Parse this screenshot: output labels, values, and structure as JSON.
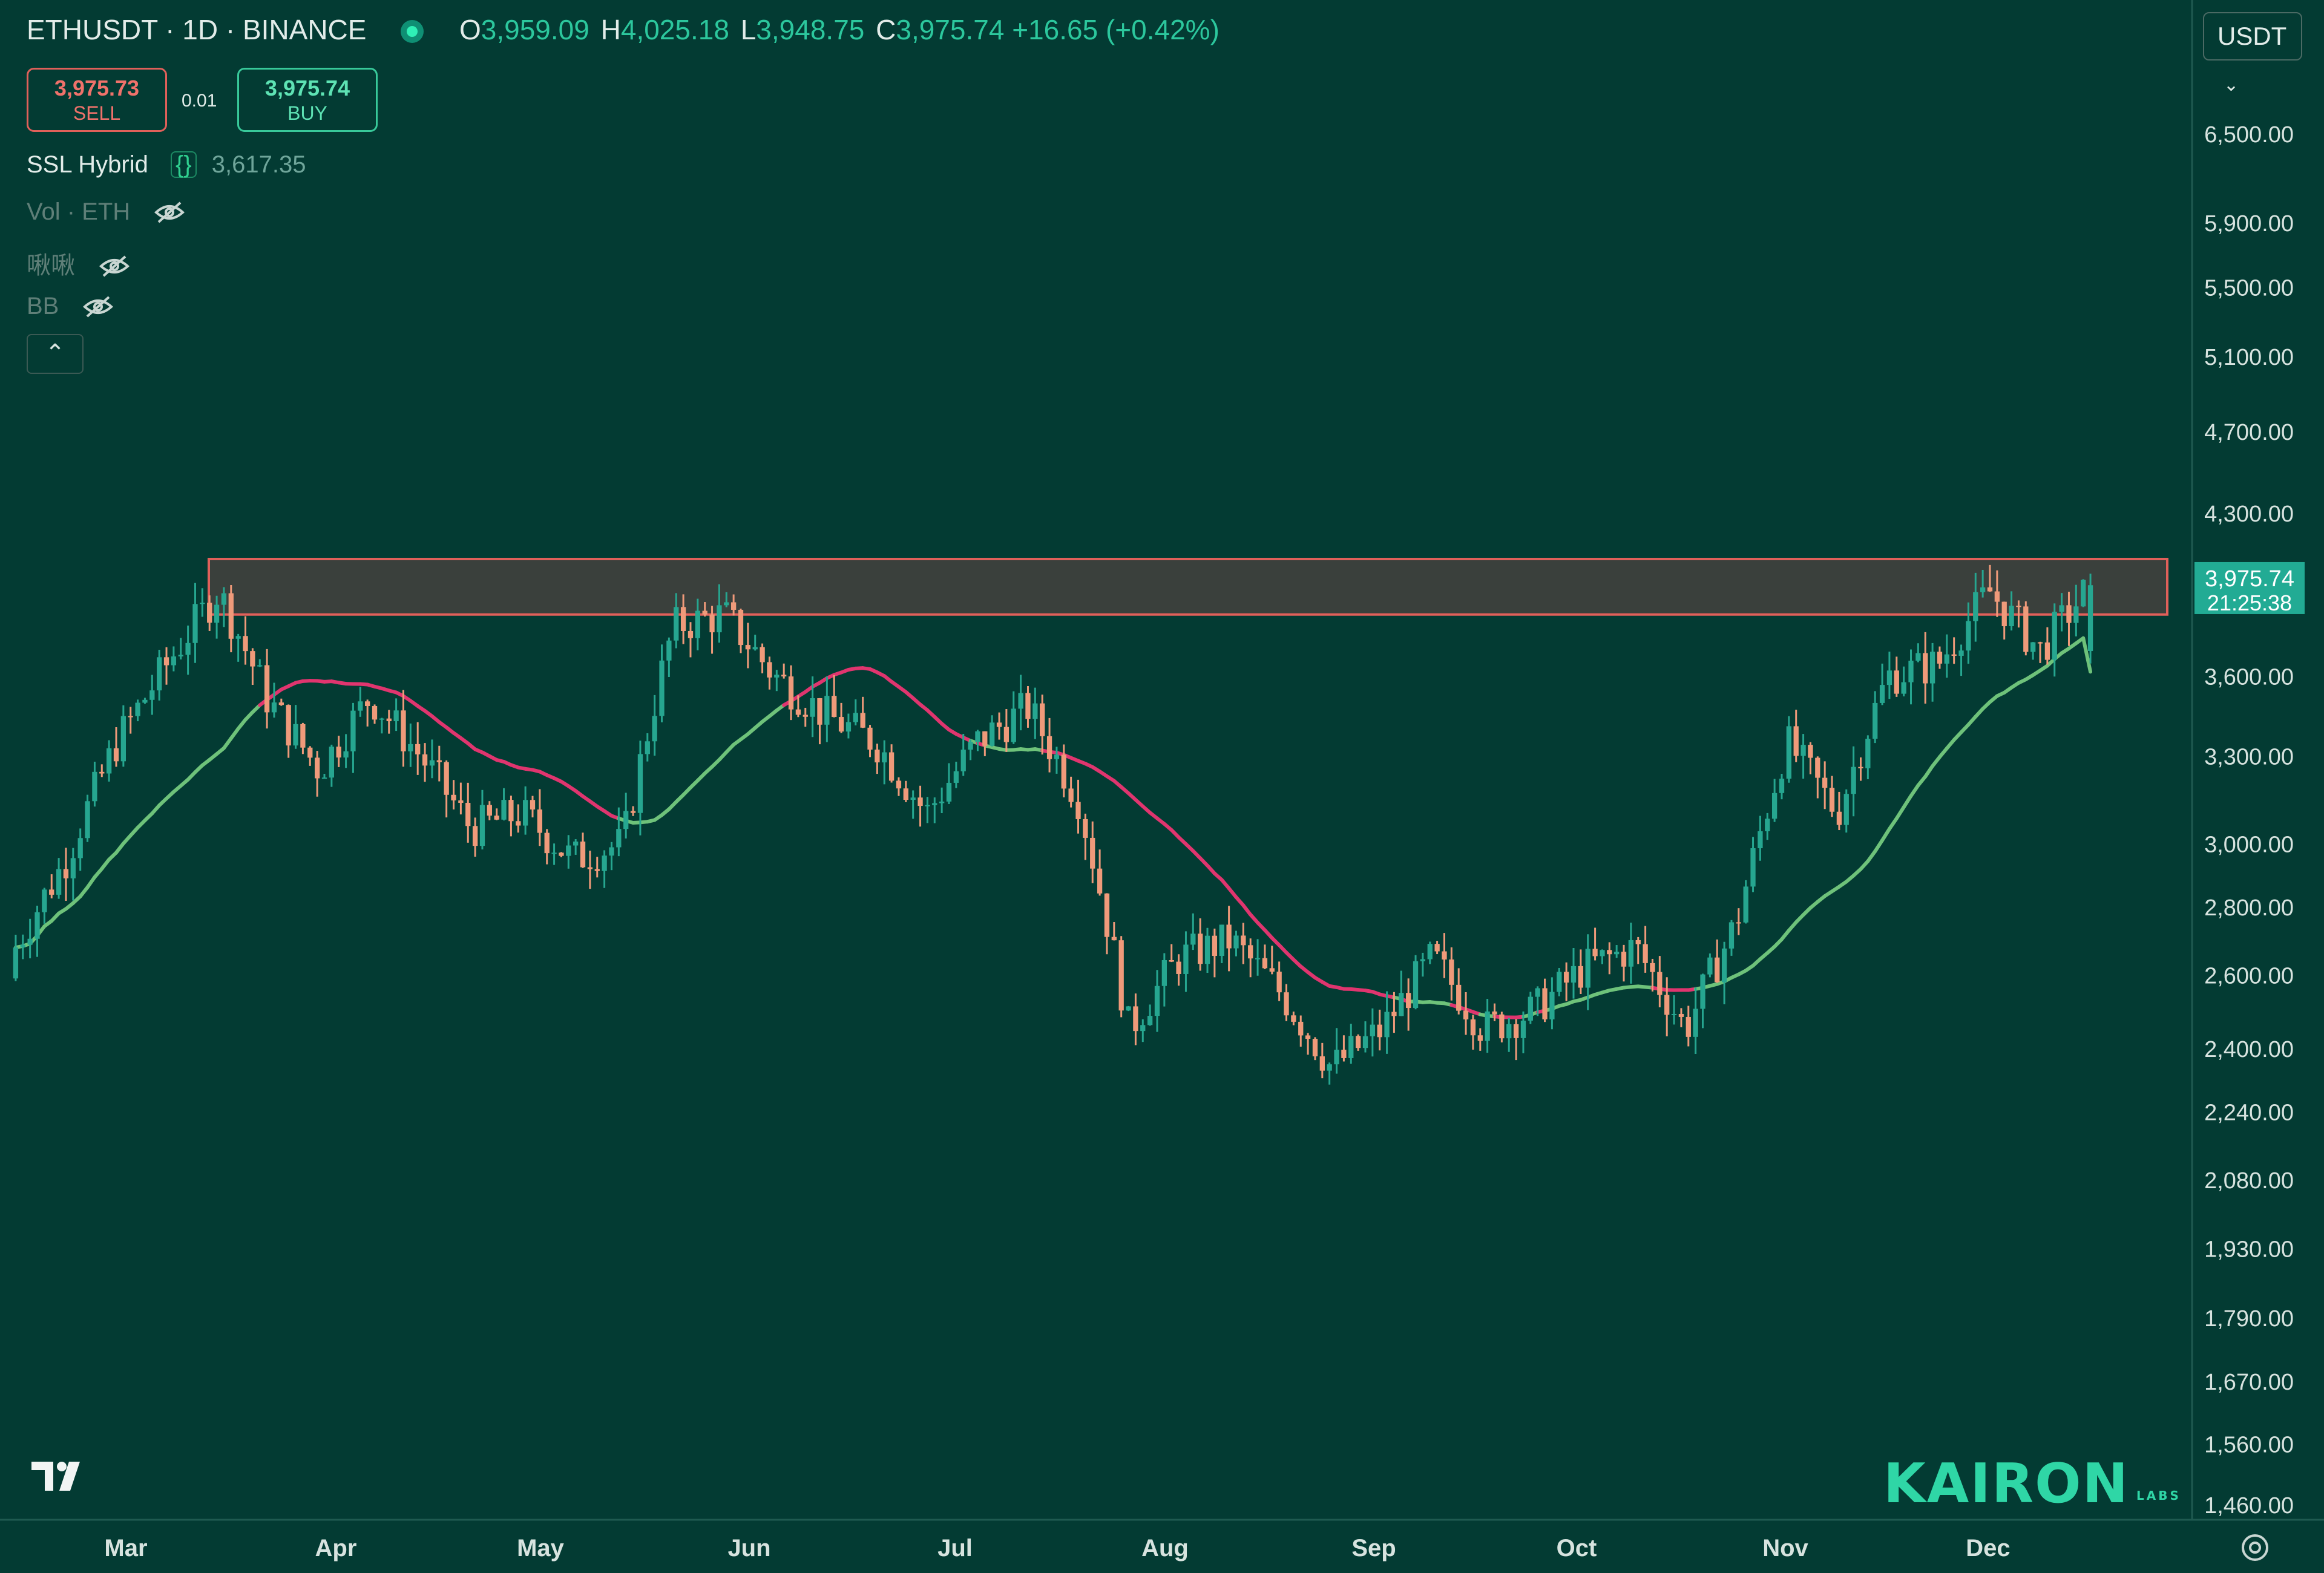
{
  "header": {
    "symbol": "ETHUSDT · 1D · BINANCE",
    "open_key": "O",
    "open": "3,959.09",
    "high_key": "H",
    "high": "4,025.18",
    "low_key": "L",
    "low": "3,948.75",
    "close_key": "C",
    "close": "3,975.74",
    "change": "+16.65 (+0.42%)"
  },
  "trade": {
    "sell_price": "3,975.73",
    "sell_label": "SELL",
    "spread": "0.01",
    "buy_price": "3,975.74",
    "buy_label": "BUY"
  },
  "indicators": [
    {
      "name": "SSL Hybrid",
      "value": "3,617.35",
      "icon": "braces-icon"
    },
    {
      "name": "Vol · ETH",
      "icon": "eye-hidden-icon"
    },
    {
      "name": "啾啾",
      "icon": "eye-hidden-icon"
    },
    {
      "name": "BB",
      "icon": "eye-hidden-icon"
    }
  ],
  "currency_select": {
    "value": "USDT"
  },
  "price_label": {
    "price": "3,975.74",
    "countdown": "21:25:38"
  },
  "branding": {
    "logo": "KAIRON",
    "sub": "LABS"
  },
  "colors": {
    "background": "#033b33",
    "up": "#26a690",
    "down": "#ef9a7a",
    "baseline_bull": "#6ec27a",
    "baseline_bear": "#e0356f",
    "zone_border": "#e0605a",
    "zone_fill": "#3a403c"
  },
  "chart_data": {
    "type": "candlestick",
    "timeframe": "1D",
    "y_scale": "log",
    "y_ticks": [
      "6,500.00",
      "5,900.00",
      "5,500.00",
      "5,100.00",
      "4,700.00",
      "4,300.00",
      "3,600.00",
      "3,300.00",
      "3,000.00",
      "2,800.00",
      "2,600.00",
      "2,400.00",
      "2,240.00",
      "2,080.00",
      "1,930.00",
      "1,790.00",
      "1,670.00",
      "1,560.00",
      "1,460.00"
    ],
    "x_ticks": [
      "Mar",
      "Apr",
      "May",
      "Jun",
      "Jul",
      "Aug",
      "Sep",
      "Oct",
      "Nov",
      "Dec"
    ],
    "resistance_zone": [
      3850,
      4090
    ],
    "current_price": 3975.74,
    "ohlc_samples": [
      [
        2590,
        2720,
        2500,
        2680
      ],
      [
        2680,
        3000,
        2650,
        2950
      ],
      [
        2950,
        3400,
        2900,
        3350
      ],
      [
        3350,
        3700,
        3300,
        3650
      ],
      [
        3650,
        4090,
        3600,
        3950
      ],
      [
        3950,
        4000,
        3400,
        3500
      ],
      [
        3500,
        3700,
        3050,
        3250
      ],
      [
        3250,
        3600,
        3200,
        3520
      ],
      [
        3520,
        3740,
        3150,
        3300
      ],
      [
        3300,
        3420,
        2850,
        3050
      ],
      [
        3050,
        3200,
        2850,
        3100
      ],
      [
        3100,
        3150,
        2830,
        2950
      ],
      [
        2950,
        3050,
        2850,
        3000
      ],
      [
        3000,
        3900,
        2950,
        3800
      ],
      [
        3800,
        3950,
        3700,
        3850
      ],
      [
        3850,
        3900,
        3550,
        3600
      ],
      [
        3600,
        3650,
        3300,
        3450
      ],
      [
        3450,
        3500,
        3250,
        3350
      ],
      [
        3350,
        3400,
        2830,
        3100
      ],
      [
        3100,
        3450,
        2950,
        3350
      ],
      [
        3350,
        3560,
        3250,
        3480
      ],
      [
        3480,
        3500,
        3050,
        3150
      ],
      [
        3150,
        3250,
        2100,
        2450
      ],
      [
        2450,
        2750,
        2350,
        2650
      ],
      [
        2650,
        2800,
        2500,
        2700
      ],
      [
        2700,
        2750,
        2400,
        2550
      ],
      [
        2550,
        2600,
        2220,
        2350
      ],
      [
        2350,
        2500,
        2250,
        2450
      ],
      [
        2450,
        2700,
        2400,
        2650
      ],
      [
        2650,
        2750,
        2400,
        2450
      ],
      [
        2450,
        2550,
        2300,
        2500
      ],
      [
        2500,
        2700,
        2450,
        2620
      ],
      [
        2620,
        2750,
        2500,
        2680
      ],
      [
        2680,
        2700,
        2350,
        2450
      ],
      [
        2450,
        2800,
        2380,
        2750
      ],
      [
        2750,
        3450,
        2700,
        3350
      ],
      [
        3350,
        3450,
        3000,
        3100
      ],
      [
        3100,
        3700,
        3050,
        3600
      ],
      [
        3600,
        3700,
        3450,
        3650
      ],
      [
        3650,
        4090,
        3600,
        3950
      ],
      [
        3950,
        3980,
        3550,
        3700
      ],
      [
        3700,
        4025,
        3650,
        3975
      ]
    ],
    "baseline_end": 3617.35
  }
}
